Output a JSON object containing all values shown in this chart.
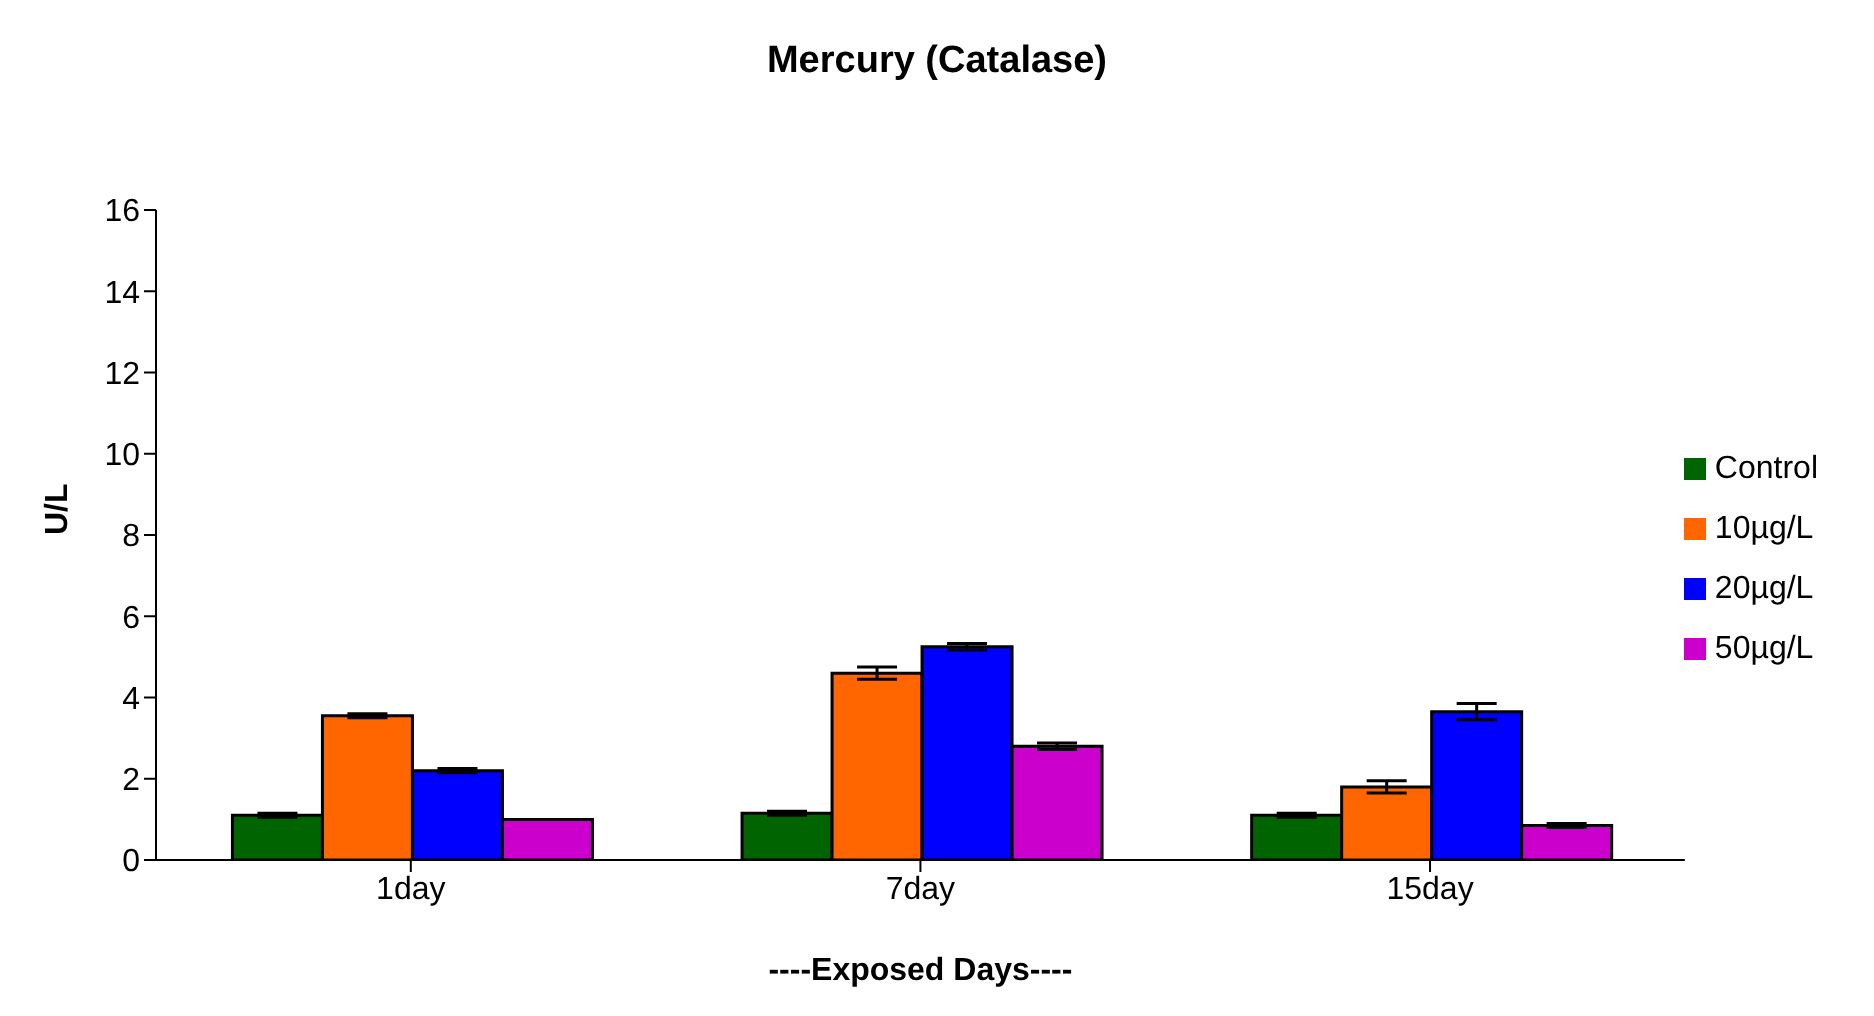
{
  "chart_data": {
    "type": "bar",
    "title": "Mercury (Catalase)",
    "xlabel": "----Exposed Days----",
    "ylabel": "U/L",
    "categories": [
      "1day",
      "7day",
      "15day"
    ],
    "series": [
      {
        "name": "Control",
        "color": "#006400",
        "values": [
          1.1,
          1.15,
          1.1
        ],
        "errors": [
          0.05,
          0.05,
          0.05
        ]
      },
      {
        "name": "10µg/L",
        "color": "#ff6600",
        "values": [
          3.55,
          4.6,
          1.8
        ],
        "errors": [
          0.05,
          0.15,
          0.15
        ]
      },
      {
        "name": "20µg/L",
        "color": "#0000ff",
        "values": [
          2.2,
          5.25,
          3.65
        ],
        "errors": [
          0.05,
          0.08,
          0.2
        ]
      },
      {
        "name": "50µg/L",
        "color": "#cc00cc",
        "values": [
          1.0,
          2.8,
          0.85
        ],
        "errors": [
          null,
          0.08,
          0.05
        ]
      }
    ],
    "ylim": [
      0,
      16
    ],
    "yticks": [
      0,
      2,
      4,
      6,
      8,
      10,
      12,
      14,
      16
    ],
    "grid": false,
    "legend": "right"
  }
}
